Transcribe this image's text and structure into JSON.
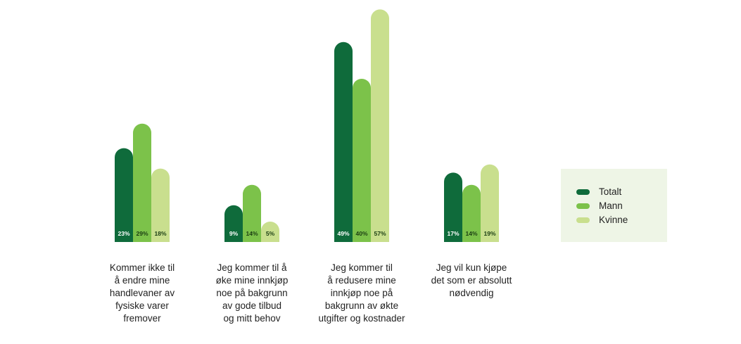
{
  "chart_data": {
    "type": "bar",
    "title": "",
    "xlabel": "",
    "ylabel": "",
    "ylim": [
      0,
      60
    ],
    "grid": false,
    "legend_position": "right",
    "categories": [
      "Kommer ikke til å endre mine handlevaner av fysiske varer fremover",
      "Jeg kommer til å øke mine innkjøp noe på bakgrunn av gode tilbud og mitt behov",
      "Jeg kommer til å redusere mine innkjøp noe på bakgrunn av økte utgifter og kostnader",
      "Jeg vil kun kjøpe det som er absolutt nødvendig"
    ],
    "category_lines": [
      [
        "Kommer ikke til",
        "å endre mine",
        "handlevaner av",
        "fysiske varer",
        "fremover"
      ],
      [
        "Jeg kommer til å",
        "øke mine innkjøp",
        "noe på bakgrunn",
        "av gode tilbud",
        "og mitt behov"
      ],
      [
        "Jeg kommer til",
        "å redusere mine",
        "innkjøp noe på",
        "bakgrunn av økte",
        "utgifter og kostnader"
      ],
      [
        "Jeg vil kun kjøpe",
        "det som er absolutt",
        "nødvendig"
      ]
    ],
    "series": [
      {
        "name": "Totalt",
        "color": "#0f6b3b",
        "values": [
          23,
          9,
          49,
          17
        ],
        "labels": [
          "23%",
          "9%",
          "49%",
          "17%"
        ]
      },
      {
        "name": "Mann",
        "color": "#7cc24a",
        "values": [
          29,
          14,
          40,
          14
        ],
        "labels": [
          "29%",
          "14%",
          "40%",
          "14%"
        ]
      },
      {
        "name": "Kvinne",
        "color": "#c9df8e",
        "values": [
          18,
          5,
          57,
          19
        ],
        "labels": [
          "18%",
          "5%",
          "57%",
          "19%"
        ]
      }
    ]
  },
  "legend": {
    "background": "#eef5e6",
    "items": [
      "Totalt",
      "Mann",
      "Kvinne"
    ]
  }
}
